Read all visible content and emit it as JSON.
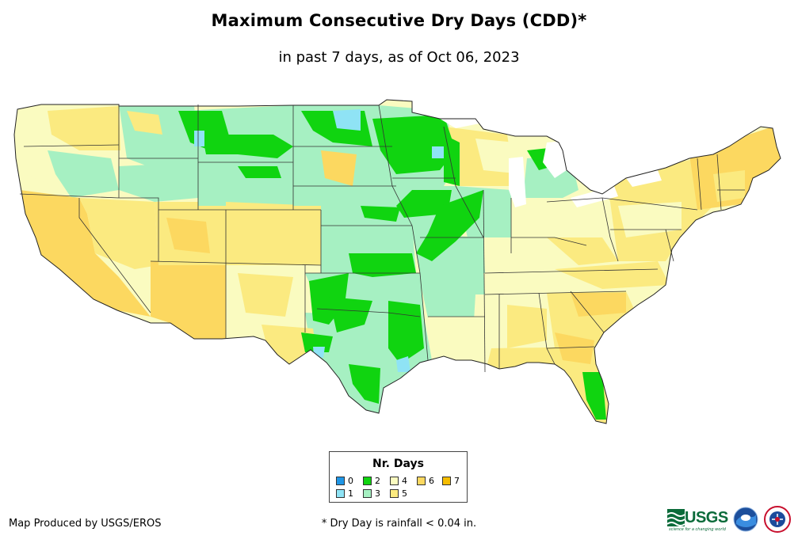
{
  "title": "Maximum Consecutive Dry Days (CDD)*",
  "subtitle": "in past 7 days, as of Oct 06, 2023",
  "legend": {
    "title": "Nr. Days",
    "items": [
      {
        "label": "0",
        "color": "#1f96e6"
      },
      {
        "label": "1",
        "color": "#8fe3f5"
      },
      {
        "label": "2",
        "color": "#10d410"
      },
      {
        "label": "3",
        "color": "#a6f0c2"
      },
      {
        "label": "4",
        "color": "#fafbc0"
      },
      {
        "label": "5",
        "color": "#fbea80"
      },
      {
        "label": "6",
        "color": "#fcd860"
      },
      {
        "label": "7",
        "color": "#f5bd00"
      }
    ]
  },
  "credit": "Map Produced by USGS/EROS",
  "footnote": "* Dry Day is rainfall < 0.04 in.",
  "logos": {
    "usgs": "USGS",
    "usgs_tagline": "science for a changing world"
  },
  "colors": {
    "border": "#222222",
    "background": "#ffffff"
  }
}
